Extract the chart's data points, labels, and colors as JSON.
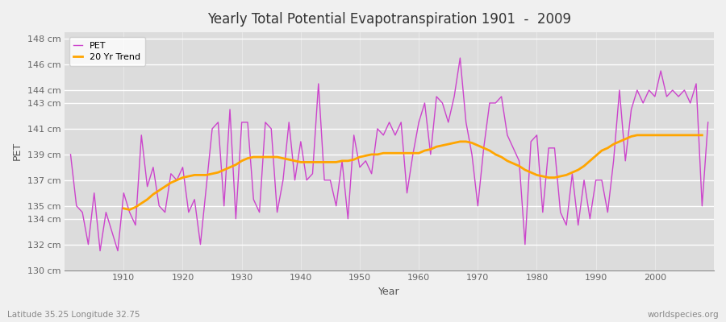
{
  "title": "Yearly Total Potential Evapotranspiration 1901  -  2009",
  "xlabel": "Year",
  "ylabel": "PET",
  "footnote_left": "Latitude 35.25 Longitude 32.75",
  "footnote_right": "worldspecies.org",
  "pet_color": "#CC44CC",
  "trend_color": "#FFA500",
  "plot_bg_color": "#DCDCDC",
  "fig_bg_color": "#F0F0F0",
  "grid_color": "#FFFFFF",
  "ylim": [
    130,
    148.5
  ],
  "yticks": [
    130,
    132,
    134,
    135,
    137,
    139,
    141,
    143,
    144,
    146,
    148
  ],
  "xlim": [
    1900,
    2010
  ],
  "xticks": [
    1910,
    1920,
    1930,
    1940,
    1950,
    1960,
    1970,
    1980,
    1990,
    2000
  ],
  "years": [
    1901,
    1902,
    1903,
    1904,
    1905,
    1906,
    1907,
    1908,
    1909,
    1910,
    1911,
    1912,
    1913,
    1914,
    1915,
    1916,
    1917,
    1918,
    1919,
    1920,
    1921,
    1922,
    1923,
    1924,
    1925,
    1926,
    1927,
    1928,
    1929,
    1930,
    1931,
    1932,
    1933,
    1934,
    1935,
    1936,
    1937,
    1938,
    1939,
    1940,
    1941,
    1942,
    1943,
    1944,
    1945,
    1946,
    1947,
    1948,
    1949,
    1950,
    1951,
    1952,
    1953,
    1954,
    1955,
    1956,
    1957,
    1958,
    1959,
    1960,
    1961,
    1962,
    1963,
    1964,
    1965,
    1966,
    1967,
    1968,
    1969,
    1970,
    1971,
    1972,
    1973,
    1974,
    1975,
    1976,
    1977,
    1978,
    1979,
    1980,
    1981,
    1982,
    1983,
    1984,
    1985,
    1986,
    1987,
    1988,
    1989,
    1990,
    1991,
    1992,
    1993,
    1994,
    1995,
    1996,
    1997,
    1998,
    1999,
    2000,
    2001,
    2002,
    2003,
    2004,
    2005,
    2006,
    2007,
    2008,
    2009
  ],
  "pet_values": [
    139.0,
    135.0,
    134.5,
    132.0,
    136.0,
    131.5,
    134.5,
    133.0,
    131.5,
    136.0,
    134.5,
    133.5,
    140.5,
    136.5,
    138.0,
    135.0,
    134.5,
    137.5,
    137.0,
    138.0,
    134.5,
    135.5,
    132.0,
    136.5,
    141.0,
    141.5,
    135.0,
    142.5,
    134.0,
    141.5,
    141.5,
    135.5,
    134.5,
    141.5,
    141.0,
    134.5,
    137.0,
    141.5,
    137.0,
    140.0,
    137.0,
    137.5,
    144.5,
    137.0,
    137.0,
    135.0,
    138.5,
    134.0,
    140.5,
    138.0,
    138.5,
    137.5,
    141.0,
    140.5,
    141.5,
    140.5,
    141.5,
    136.0,
    139.0,
    141.5,
    143.0,
    139.0,
    143.5,
    143.0,
    141.5,
    143.5,
    146.5,
    141.5,
    139.0,
    135.0,
    139.5,
    143.0,
    143.0,
    143.5,
    140.5,
    139.5,
    138.5,
    132.0,
    140.0,
    140.5,
    134.5,
    139.5,
    139.5,
    134.5,
    133.5,
    137.5,
    133.5,
    137.0,
    134.0,
    137.0,
    137.0,
    134.5,
    138.5,
    144.0,
    138.5,
    142.5,
    144.0,
    143.0,
    144.0,
    143.5,
    145.5,
    143.5,
    144.0,
    143.5,
    144.0,
    143.0,
    144.5,
    135.0,
    141.5
  ],
  "trend_values": [
    null,
    null,
    null,
    null,
    null,
    null,
    null,
    null,
    null,
    134.8,
    134.7,
    134.9,
    135.2,
    135.5,
    135.9,
    136.2,
    136.5,
    136.8,
    137.0,
    137.2,
    137.3,
    137.4,
    137.4,
    137.4,
    137.5,
    137.6,
    137.8,
    138.0,
    138.2,
    138.5,
    138.7,
    138.8,
    138.8,
    138.8,
    138.8,
    138.8,
    138.7,
    138.6,
    138.5,
    138.4,
    138.4,
    138.4,
    138.4,
    138.4,
    138.4,
    138.4,
    138.5,
    138.5,
    138.6,
    138.8,
    138.9,
    139.0,
    139.0,
    139.1,
    139.1,
    139.1,
    139.1,
    139.1,
    139.1,
    139.1,
    139.3,
    139.4,
    139.6,
    139.7,
    139.8,
    139.9,
    140.0,
    140.0,
    139.9,
    139.7,
    139.5,
    139.3,
    139.0,
    138.8,
    138.5,
    138.3,
    138.1,
    137.8,
    137.6,
    137.4,
    137.3,
    137.2,
    137.2,
    137.3,
    137.4,
    137.6,
    137.8,
    138.1,
    138.5,
    138.9,
    139.3,
    139.5,
    139.8,
    140.0,
    140.2,
    140.4,
    140.5,
    140.5,
    140.5,
    140.5,
    140.5,
    140.5,
    140.5,
    140.5,
    140.5,
    140.5,
    140.5,
    140.5
  ]
}
